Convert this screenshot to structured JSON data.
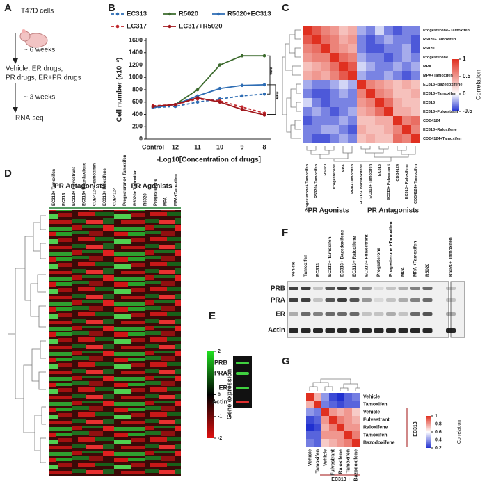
{
  "panel_labels": [
    "A",
    "B",
    "C",
    "D",
    "E",
    "F",
    "G"
  ],
  "panel_a": {
    "steps": [
      "T47D cells",
      "~ 6 weeks",
      "Vehicle, ER drugs,",
      "PR drugs, ER+PR drugs",
      "~ 3 weeks",
      "RNA-seq"
    ]
  },
  "chart_data": {
    "type": "line",
    "y_label": "Cell number (x10⁻³)",
    "x_label": "-Log10[Concentration of drugs]",
    "categories": [
      "Control",
      "12",
      "11",
      "10",
      "9",
      "8"
    ],
    "ylim": [
      0,
      1600
    ],
    "yticks": [
      0,
      200,
      400,
      600,
      800,
      1000,
      1200,
      1400,
      1600
    ],
    "series": [
      {
        "name": "EC313",
        "color": "#2e6db4",
        "dashed": true,
        "values": [
          510,
          530,
          600,
          650,
          700,
          730
        ]
      },
      {
        "name": "R5020",
        "color": "#3d6b2e",
        "dashed": false,
        "values": [
          530,
          560,
          800,
          1200,
          1350,
          1350
        ]
      },
      {
        "name": "R5020+EC313",
        "color": "#2e6db4",
        "dashed": false,
        "values": [
          510,
          560,
          700,
          820,
          870,
          880
        ]
      },
      {
        "name": "EC317",
        "color": "#c0282d",
        "dashed": true,
        "values": [
          540,
          560,
          650,
          620,
          520,
          420
        ]
      },
      {
        "name": "EC317+R5020",
        "color": "#a0161b",
        "dashed": false,
        "values": [
          530,
          560,
          670,
          600,
          480,
          390
        ]
      }
    ],
    "annotations": [
      "***",
      "***"
    ]
  },
  "panel_c": {
    "type": "heatmap",
    "rows": [
      "Progesterone+Tamoxifen",
      "R5020+Tamoxifen",
      "R5020",
      "Progesterone",
      "MPA",
      "MPA+Tamoxifen",
      "EC313+Bazedoxifene",
      "EC313+Tamoxifen",
      "EC313",
      "EC313+Fulvestrant",
      "CDB4124",
      "EC313+Raloxifene",
      "CDB4124+Tamoxifen"
    ],
    "columns": [
      "Progesterone+ Tamoxifen",
      "R5020+ Tamoxifen",
      "R5020",
      "Progesterone",
      "MPA",
      "MPA+Tamoxifen",
      "EC313+ Bazedoxifene",
      "EC313+ Tamoxifen",
      "EC313",
      "EC313+ Fulvestrant",
      "CDB4124",
      "EC313+ Raloxifene",
      "CDB4124+ Tamoxifen"
    ],
    "label_colors": [
      "#1a7a2e",
      "#1a7a2e",
      "#1a7a2e",
      "#1a7a2e",
      "#1a7a2e",
      "#1a7a2e",
      "#a01010",
      "#a01010",
      "#a01010",
      "#a01010",
      "#a01010",
      "#a01010",
      "#a01010"
    ],
    "values": [
      [
        1,
        0.8,
        0.6,
        0.5,
        0.3,
        0.4,
        -0.2,
        -0.3,
        -0.1,
        -0.3,
        -0.4,
        -0.3,
        -0.3
      ],
      [
        0.8,
        1,
        0.7,
        0.6,
        0.4,
        0.5,
        -0.3,
        -0.4,
        -0.3,
        -0.2,
        -0.3,
        -0.3,
        -0.4
      ],
      [
        0.6,
        0.7,
        1,
        0.6,
        0.5,
        0.4,
        -0.3,
        -0.4,
        -0.4,
        -0.3,
        -0.3,
        -0.2,
        -0.4
      ],
      [
        0.5,
        0.6,
        0.6,
        1,
        0.7,
        0.6,
        -0.2,
        -0.3,
        -0.3,
        -0.4,
        -0.3,
        -0.2,
        -0.3
      ],
      [
        0.3,
        0.4,
        0.5,
        0.7,
        1,
        0.8,
        -0.1,
        -0.2,
        -0.3,
        -0.3,
        -0.2,
        -0.3,
        -0.2
      ],
      [
        0.4,
        0.5,
        0.4,
        0.6,
        0.8,
        1,
        -0.2,
        -0.3,
        -0.3,
        -0.2,
        -0.3,
        -0.4,
        -0.3
      ],
      [
        -0.2,
        -0.3,
        -0.3,
        -0.2,
        -0.1,
        -0.2,
        1,
        0.6,
        0.5,
        0.4,
        0.3,
        0.4,
        0.3
      ],
      [
        -0.3,
        -0.4,
        -0.4,
        -0.3,
        -0.2,
        -0.3,
        0.6,
        1,
        0.6,
        0.5,
        0.3,
        0.3,
        0.4
      ],
      [
        -0.1,
        -0.3,
        -0.4,
        -0.3,
        -0.3,
        -0.3,
        0.5,
        0.6,
        1,
        0.7,
        0.4,
        0.3,
        0.3
      ],
      [
        -0.3,
        -0.2,
        -0.3,
        -0.4,
        -0.3,
        -0.2,
        0.4,
        0.5,
        0.7,
        1,
        0.4,
        0.4,
        0.3
      ],
      [
        -0.4,
        -0.3,
        -0.3,
        -0.3,
        -0.2,
        -0.3,
        0.3,
        0.3,
        0.4,
        0.4,
        1,
        0.6,
        0.7
      ],
      [
        -0.3,
        -0.3,
        -0.2,
        -0.2,
        -0.3,
        -0.4,
        0.4,
        0.3,
        0.3,
        0.4,
        0.6,
        1,
        0.6
      ],
      [
        -0.3,
        -0.4,
        -0.4,
        -0.3,
        -0.2,
        -0.3,
        0.3,
        0.4,
        0.3,
        0.3,
        0.7,
        0.6,
        1
      ]
    ],
    "cticks": [
      1,
      0.5,
      0,
      -0.5
    ],
    "colorbar_label": "Correlation",
    "groups": [
      "PR Agonists",
      "PR Antagonists"
    ]
  },
  "panel_d": {
    "groups": [
      "PR Antagonists",
      "PR Agonists"
    ],
    "columns": [
      "EC313+ Tamoxifen",
      "EC313",
      "EC313+ Fulvestrant",
      "EC313+ Bazedoxifene",
      "CDB4124+ Tamoxifen",
      "EC313+ Raloxifene",
      "CDB4124",
      "Progesterone+ Tamoxifen",
      "R5020+ Tamoxifen",
      "R5020",
      "Progesterone",
      "MPA",
      "MPA+Tamoxifen"
    ],
    "label_colors": [
      "#a01010",
      "#a01010",
      "#a01010",
      "#a01010",
      "#a01010",
      "#a01010",
      "#a01010",
      "#1a7a2e",
      "#1a7a2e",
      "#1a7a2e",
      "#1a7a2e",
      "#1a7a2e",
      "#1a7a2e"
    ],
    "cticks": [
      2,
      1,
      0,
      -1,
      -2
    ],
    "colorbar_label": "Gene expression"
  },
  "panel_e": {
    "rows": [
      "PRB",
      "PRA",
      "ER",
      "Actin"
    ]
  },
  "panel_f": {
    "columns": [
      "Vehicle",
      "Tamoxifen",
      "EC313",
      "EC313+ Tamoxifen",
      "EC313+ Bazedoxifene",
      "EC313+ Raloxifene",
      "EC313+ Fulvestrant",
      "Progesterone",
      "Progesterone +Tamoxifen",
      "MPA",
      "MPA +Tamoxifen",
      "R5020",
      "R5020+ Tamoxifen"
    ],
    "label_colors": [
      "#111",
      "#111",
      "#a01010",
      "#a01010",
      "#a01010",
      "#a01010",
      "#a01010",
      "#1a7a2e",
      "#1a7a2e",
      "#1a7a2e",
      "#1a7a2e",
      "#1a7a2e",
      "#1a7a2e"
    ],
    "rows": [
      "PRB",
      "PRA",
      "ER",
      "Actin"
    ]
  },
  "panel_g": {
    "type": "heatmap",
    "rows": [
      "Vehicle",
      "Tamoxifen",
      "Vehicle",
      "Fulvestrant",
      "Raloxifene",
      "Tamoxifen",
      "Bazodoxifene"
    ],
    "columns": [
      "Vehicle",
      "Tamoxifen",
      "Vehicle",
      "Fulvestrant",
      "Raloxifene",
      "Tamoxifen",
      "Bazodoxifene"
    ],
    "label_colors": [
      "#1a2aa0",
      "#1a7a2e",
      "#a01010",
      "#a01010",
      "#a01010",
      "#a01010",
      "#a01010"
    ],
    "values": [
      [
        1,
        0.75,
        0.4,
        0.25,
        0.2,
        0.3,
        0.35
      ],
      [
        0.75,
        1,
        0.35,
        0.3,
        0.25,
        0.3,
        0.3
      ],
      [
        0.4,
        0.35,
        1,
        0.8,
        0.75,
        0.8,
        0.7
      ],
      [
        0.25,
        0.3,
        0.8,
        1,
        0.85,
        0.8,
        0.75
      ],
      [
        0.2,
        0.25,
        0.75,
        0.85,
        1,
        0.8,
        0.8
      ],
      [
        0.3,
        0.3,
        0.8,
        0.8,
        0.8,
        1,
        0.85
      ],
      [
        0.35,
        0.3,
        0.7,
        0.75,
        0.8,
        0.85,
        1
      ]
    ],
    "cticks": [
      1,
      0.8,
      0.6,
      0.4,
      0.2
    ],
    "colorbar_label": "Correlation",
    "group_label": "EC313 +"
  }
}
